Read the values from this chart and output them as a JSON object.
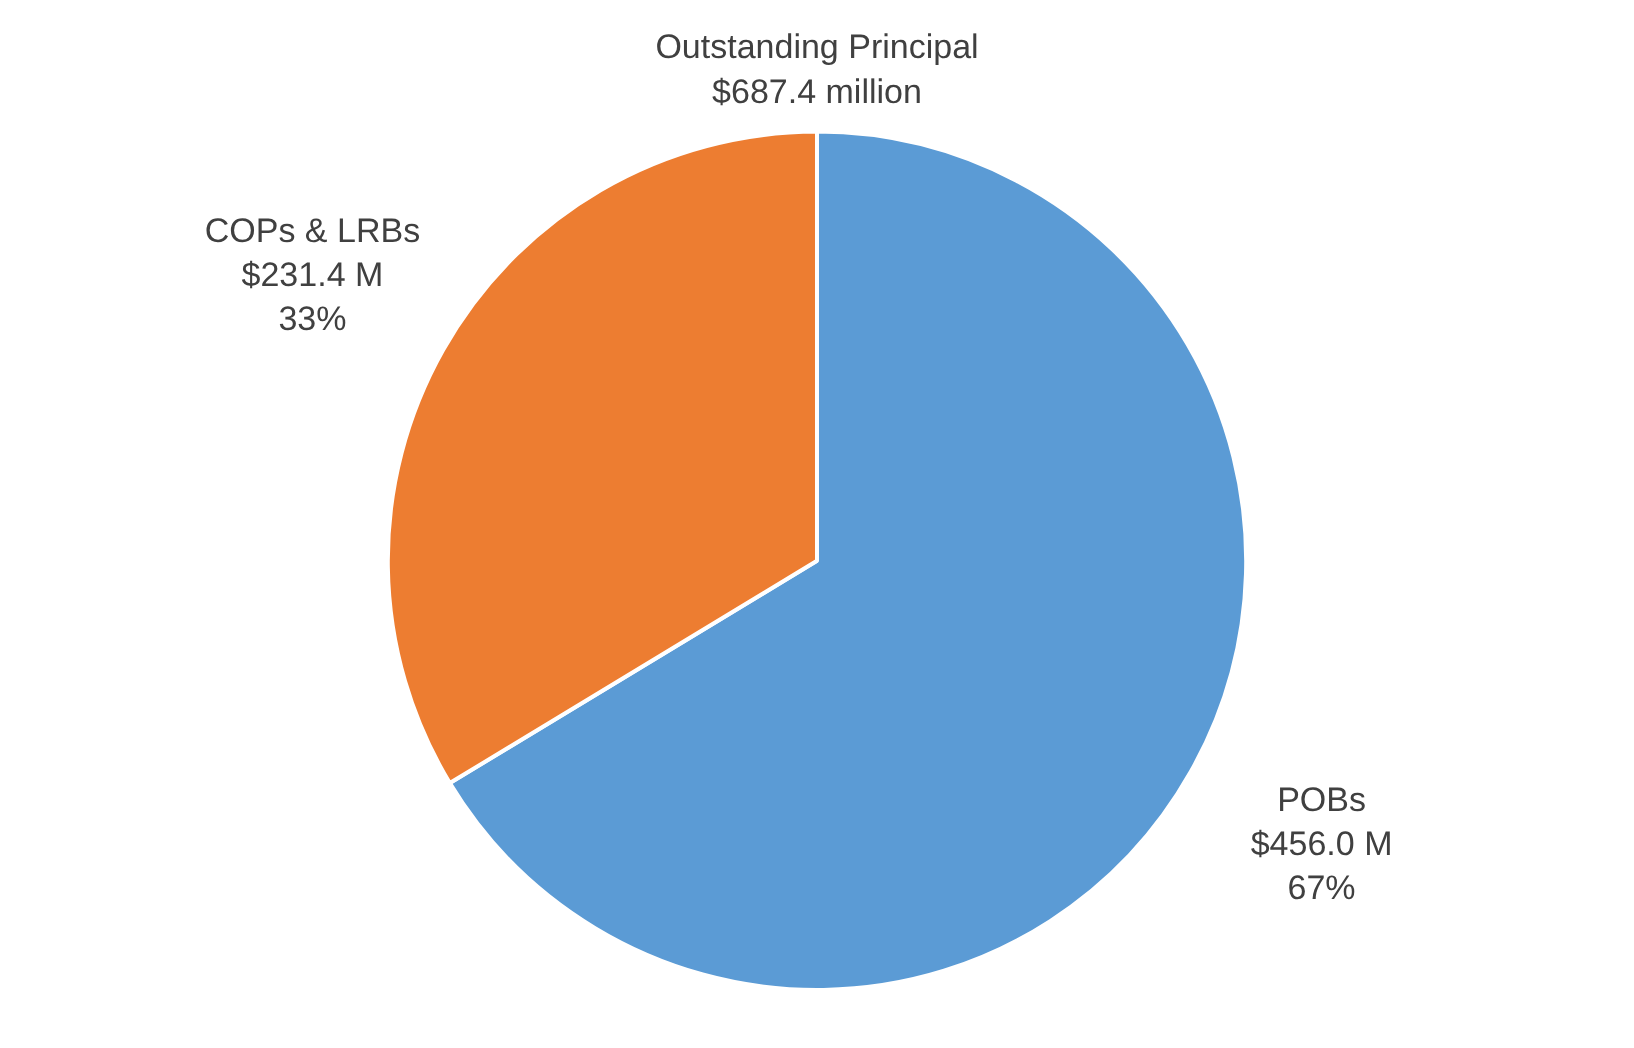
{
  "chart_data": {
    "type": "pie",
    "title": "Outstanding Principal",
    "subtitle": "$687.4 million",
    "categories": [
      "POBs",
      "COPs & LRBs"
    ],
    "values": [
      456.0,
      231.4
    ],
    "colors": [
      "#5b9bd5",
      "#ed7d31"
    ],
    "value_labels": [
      "$456.0 M\n67%",
      "$231.4 M\n33%"
    ],
    "legend": false
  }
}
